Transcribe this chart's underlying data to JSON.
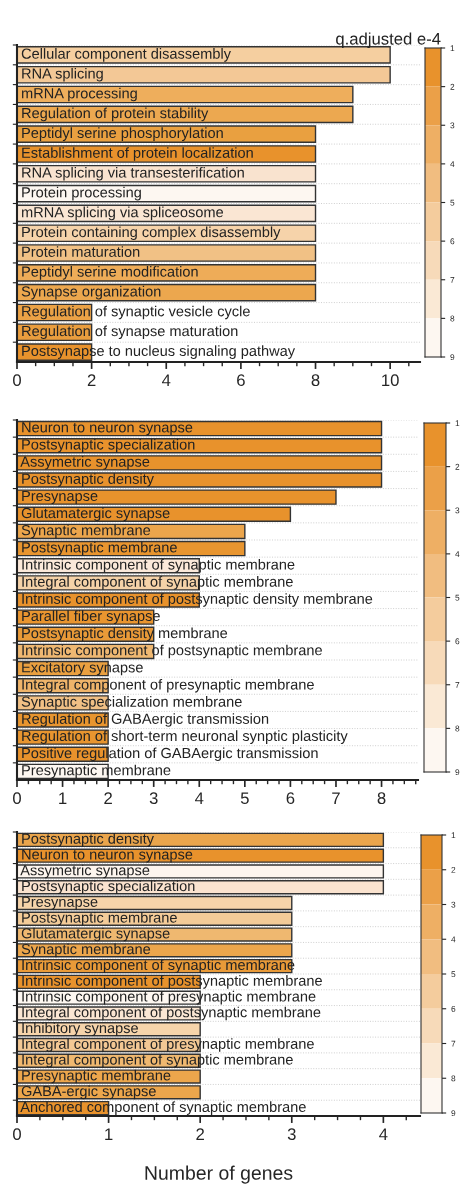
{
  "chart_data": [
    {
      "type": "bar",
      "orientation": "horizontal",
      "clabel": "q.adjusted e-4",
      "clim": [
        1,
        9
      ],
      "cticks": [
        1,
        2,
        3,
        4,
        5,
        6,
        7,
        8,
        9
      ],
      "xlim": [
        0,
        10.8
      ],
      "xticks": [
        0,
        2,
        4,
        6,
        8,
        10
      ],
      "grid": "y",
      "categories": [
        "Cellular component disassembly",
        "RNA splicing",
        "mRNA processing",
        "Regulation of protein stability",
        "Peptidyl serine phosphorylation",
        "Establishment of protein localization",
        "RNA splicing via transesterification",
        "Protein processing",
        "mRNA splicing via spliceosome",
        "Protein containing complex disassembly",
        "Protein maturation",
        "Peptidyl serine modification",
        "Synapse organization",
        "Regulation of synaptic vesicle cycle",
        "Regulation of synapse maturation",
        "Postsynapse to nucleus signaling pathway"
      ],
      "values": [
        10,
        10,
        9,
        9,
        8,
        8,
        8,
        8,
        8,
        8,
        8,
        8,
        8,
        2,
        2,
        2
      ],
      "colors": [
        "#f5cfa0",
        "#f3c896",
        "#eeae5c",
        "#eca850",
        "#e9a040",
        "#e8922c",
        "#f9e3cf",
        "#fdf7f1",
        "#fae6d3",
        "#f6d3aa",
        "#f1c185",
        "#eeac58",
        "#eca74e",
        "#eba246",
        "#e99d3e",
        "#e8922c"
      ]
    },
    {
      "type": "bar",
      "orientation": "horizontal",
      "clim": [
        1,
        9
      ],
      "cticks": [
        1,
        2,
        3,
        4,
        5,
        6,
        7,
        8,
        9
      ],
      "xlim": [
        0,
        8.8
      ],
      "xticks": [
        0,
        1,
        2,
        3,
        4,
        5,
        6,
        7,
        8
      ],
      "grid": "y",
      "categories": [
        "Neuron to neuron synapse",
        "Postsynaptic specialization",
        "Assymetric synapse",
        "Postsynaptic density",
        "Presynapse",
        "Glutamatergic synapse",
        "Synaptic membrane",
        "Postsynaptic membrane",
        "Intrinsic component of synaptic membrane",
        "Integral component of synaptic membrane",
        "Intrinsic component of postsynaptic density membrane",
        "Parallel fiber synapse",
        "Postsynaptic density membrane",
        "Intrinsic component of postsynaptic membrane",
        "Excitatory synapse",
        "Integral component of presynaptic membrane",
        "Synaptic specialization membrane",
        "Regulation of GABAergic transmission",
        "Regulation of short-term neuronal synptic plasticity",
        "Positive regulation of GABAergic transmission",
        "Presynaptic membrane"
      ],
      "values": [
        8,
        8,
        8,
        8,
        7,
        6,
        5,
        5,
        4,
        4,
        4,
        3,
        3,
        3,
        2,
        2,
        2,
        2,
        2,
        2,
        2
      ],
      "colors": [
        "#e8922c",
        "#e8922c",
        "#e8922c",
        "#e8922c",
        "#e8922c",
        "#e8922c",
        "#eba54c",
        "#e8952f",
        "#fbe9da",
        "#f5d2a8",
        "#e8922c",
        "#e9952f",
        "#e99a38",
        "#efb872",
        "#eaa040",
        "#efb46a",
        "#f1c085",
        "#e8952f",
        "#e8952f",
        "#e8922c",
        "#fdf7f1"
      ]
    },
    {
      "type": "bar",
      "orientation": "horizontal",
      "clim": [
        1,
        9
      ],
      "cticks": [
        1,
        2,
        3,
        4,
        5,
        6,
        7,
        8,
        9
      ],
      "xlim": [
        0,
        4.4
      ],
      "xticks": [
        0,
        1,
        2,
        3,
        4
      ],
      "grid": "y",
      "xlabel": "Number of genes",
      "categories": [
        "Postsynaptic density",
        "Neuron to neuron synapse",
        "Assymetric synapse",
        "Postsynaptic specialization",
        "Presynapse",
        "Postsynaptic membrane",
        "Glutamatergic synapse",
        "Synaptic membrane",
        "Intrinsic component of synaptic membrane",
        "Intrinsic component of postsynaptic membrane",
        "Intrinsic component of presynaptic membrane",
        "Integral component of postsynaptic membrane",
        "Inhibitory synapse",
        "Integral component of presynaptic membrane",
        "Integral component of synaptic membrane",
        "Presynaptic membrane",
        "GABA-ergic synapse",
        "Anchored component of synaptic membrane"
      ],
      "values": [
        4,
        4,
        4,
        4,
        3,
        3,
        3,
        3,
        3,
        2,
        2,
        2,
        2,
        2,
        2,
        2,
        2,
        1
      ],
      "colors": [
        "#eaa54c",
        "#e8922c",
        "#fdf5ee",
        "#fae3cf",
        "#f6d4aa",
        "#f3cb98",
        "#efb870",
        "#eca64c",
        "#e99a38",
        "#e8922c",
        "#fdf7f1",
        "#fae6d3",
        "#f6d4aa",
        "#f3c894",
        "#efb870",
        "#eca64c",
        "#eca64c",
        "#e8922c"
      ]
    }
  ]
}
